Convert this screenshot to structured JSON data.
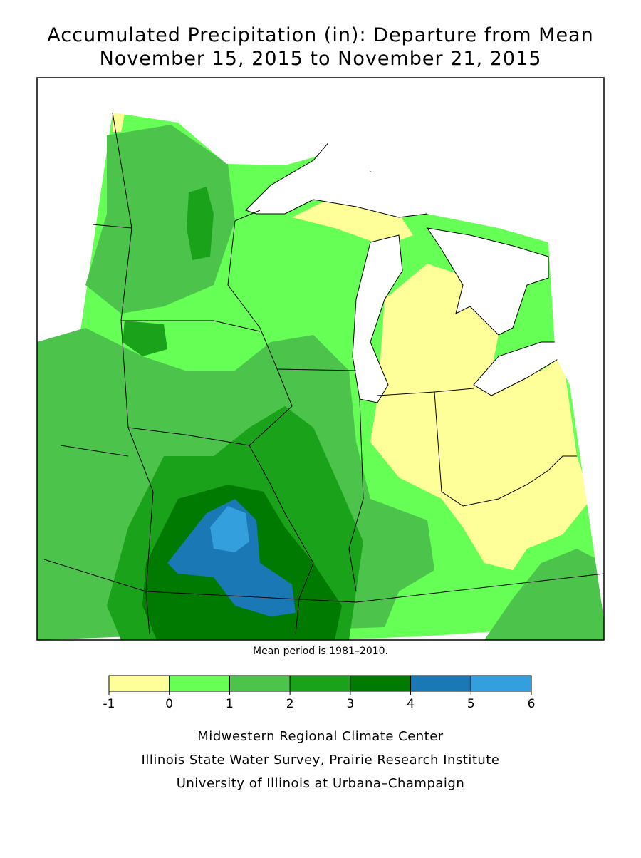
{
  "title": [
    "Accumulated Precipitation (in): Departure from Mean",
    "November 15, 2015 to November 21, 2015"
  ],
  "note": "Mean period is 1981–2010.",
  "legend": {
    "ticks": [
      -1,
      0,
      1,
      2,
      3,
      4,
      5,
      6
    ],
    "colors": [
      "#ffff99",
      "#66ff55",
      "#4cc44c",
      "#1aa31a",
      "#007a00",
      "#1a78b4",
      "#33a0dd"
    ]
  },
  "credits": [
    "Midwestern Regional Climate Center",
    "Illinois State Water Survey, Prairie Research Institute",
    "University of Illinois at Urbana–Champaign"
  ]
}
